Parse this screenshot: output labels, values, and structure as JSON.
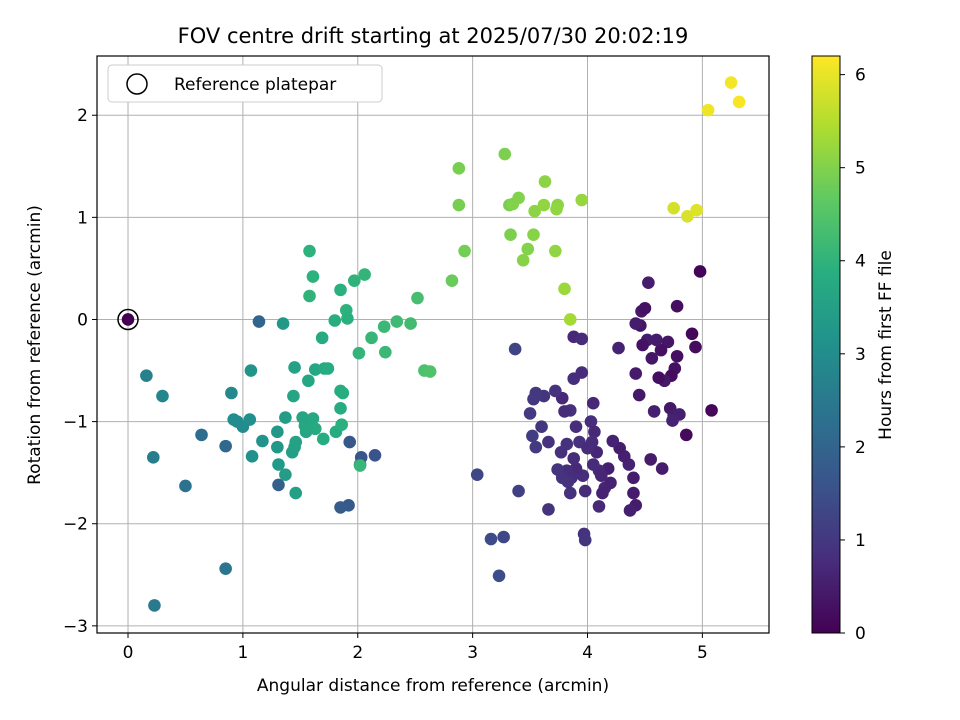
{
  "chart_data": {
    "type": "scatter",
    "title": "FOV centre drift starting at 2025/07/30 20:02:19",
    "xlabel": "Angular distance from reference (arcmin)",
    "ylabel": "Rotation from reference (arcmin)",
    "xlim": [
      -0.27,
      5.58
    ],
    "ylim": [
      -3.07,
      2.58
    ],
    "xticks": [
      0,
      1,
      2,
      3,
      4,
      5
    ],
    "yticks": [
      2,
      1,
      0,
      -1,
      -2,
      -3
    ],
    "grid": true,
    "colormap": "viridis",
    "colorbar": {
      "label": "Hours from first FF file",
      "min": 0,
      "max": 6.2,
      "ticks": [
        0,
        1,
        2,
        3,
        4,
        5,
        6
      ]
    },
    "legend": {
      "position": "top-left",
      "entries": [
        "Reference platepar"
      ]
    },
    "reference_point": {
      "x": 0,
      "y": 0
    },
    "points": [
      {
        "x": 0.0,
        "y": 0.0,
        "t": 0.0
      },
      {
        "x": 4.98,
        "y": 0.47,
        "t": 0.05
      },
      {
        "x": 5.08,
        "y": -0.89,
        "t": 0.1
      },
      {
        "x": 4.86,
        "y": -1.13,
        "t": 0.15
      },
      {
        "x": 4.94,
        "y": -0.27,
        "t": 0.2
      },
      {
        "x": 4.91,
        "y": -0.14,
        "t": 0.1
      },
      {
        "x": 4.78,
        "y": -0.36,
        "t": 0.25
      },
      {
        "x": 4.76,
        "y": -0.48,
        "t": 0.3
      },
      {
        "x": 4.73,
        "y": -0.55,
        "t": 0.2
      },
      {
        "x": 4.7,
        "y": -0.22,
        "t": 0.35
      },
      {
        "x": 4.67,
        "y": -0.6,
        "t": 0.4
      },
      {
        "x": 4.64,
        "y": -0.3,
        "t": 0.3
      },
      {
        "x": 4.62,
        "y": -0.57,
        "t": 0.25
      },
      {
        "x": 4.6,
        "y": -0.2,
        "t": 0.45
      },
      {
        "x": 4.56,
        "y": -0.38,
        "t": 0.35
      },
      {
        "x": 4.52,
        "y": -0.2,
        "t": 0.5
      },
      {
        "x": 4.48,
        "y": -0.25,
        "t": 0.3
      },
      {
        "x": 4.45,
        "y": -0.74,
        "t": 0.4
      },
      {
        "x": 4.42,
        "y": -0.53,
        "t": 0.45
      },
      {
        "x": 4.46,
        "y": -0.06,
        "t": 0.35
      },
      {
        "x": 4.42,
        "y": -0.04,
        "t": 0.5
      },
      {
        "x": 4.47,
        "y": 0.08,
        "t": 0.4
      },
      {
        "x": 4.5,
        "y": 0.11,
        "t": 0.3
      },
      {
        "x": 4.53,
        "y": 0.36,
        "t": 0.5
      },
      {
        "x": 4.78,
        "y": 0.13,
        "t": 0.25
      },
      {
        "x": 4.55,
        "y": -1.37,
        "t": 0.45
      },
      {
        "x": 4.58,
        "y": -0.9,
        "t": 0.55
      },
      {
        "x": 4.65,
        "y": -1.46,
        "t": 0.5
      },
      {
        "x": 4.72,
        "y": -0.87,
        "t": 0.4
      },
      {
        "x": 4.75,
        "y": -0.94,
        "t": 0.5
      },
      {
        "x": 4.8,
        "y": -0.93,
        "t": 0.55
      },
      {
        "x": 4.74,
        "y": -0.99,
        "t": 0.6
      },
      {
        "x": 4.4,
        "y": -1.55,
        "t": 0.5
      },
      {
        "x": 4.4,
        "y": -1.7,
        "t": 0.45
      },
      {
        "x": 4.42,
        "y": -1.82,
        "t": 0.5
      },
      {
        "x": 4.37,
        "y": -1.87,
        "t": 0.55
      },
      {
        "x": 4.36,
        "y": -1.42,
        "t": 0.6
      },
      {
        "x": 4.32,
        "y": -1.34,
        "t": 0.55
      },
      {
        "x": 4.28,
        "y": -1.26,
        "t": 0.5
      },
      {
        "x": 4.22,
        "y": -1.19,
        "t": 0.6
      },
      {
        "x": 4.18,
        "y": -1.46,
        "t": 0.55
      },
      {
        "x": 4.15,
        "y": -1.65,
        "t": 0.65
      },
      {
        "x": 4.13,
        "y": -1.7,
        "t": 0.6
      },
      {
        "x": 4.1,
        "y": -1.48,
        "t": 0.7
      },
      {
        "x": 4.08,
        "y": -1.3,
        "t": 0.65
      },
      {
        "x": 4.1,
        "y": -1.83,
        "t": 0.7
      },
      {
        "x": 4.05,
        "y": -1.42,
        "t": 0.75
      },
      {
        "x": 4.03,
        "y": -1.0,
        "t": 0.8
      },
      {
        "x": 3.98,
        "y": -1.68,
        "t": 0.75
      },
      {
        "x": 3.96,
        "y": -1.53,
        "t": 0.8
      },
      {
        "x": 3.93,
        "y": -1.2,
        "t": 0.85
      },
      {
        "x": 3.9,
        "y": -1.46,
        "t": 0.7
      },
      {
        "x": 3.88,
        "y": -1.36,
        "t": 0.75
      },
      {
        "x": 3.86,
        "y": -1.55,
        "t": 0.8
      },
      {
        "x": 3.85,
        "y": -0.89,
        "t": 0.85
      },
      {
        "x": 3.83,
        "y": -1.59,
        "t": 0.9
      },
      {
        "x": 3.82,
        "y": -1.48,
        "t": 0.8
      },
      {
        "x": 3.8,
        "y": -0.9,
        "t": 0.75
      },
      {
        "x": 3.78,
        "y": -0.77,
        "t": 0.7
      },
      {
        "x": 3.77,
        "y": -1.3,
        "t": 0.85
      },
      {
        "x": 3.74,
        "y": -1.47,
        "t": 0.95
      },
      {
        "x": 3.72,
        "y": -0.7,
        "t": 0.9
      },
      {
        "x": 3.66,
        "y": -1.2,
        "t": 0.85
      },
      {
        "x": 3.66,
        "y": -1.86,
        "t": 0.9
      },
      {
        "x": 3.62,
        "y": -0.75,
        "t": 0.95
      },
      {
        "x": 3.55,
        "y": -0.72,
        "t": 1.0
      },
      {
        "x": 3.55,
        "y": -1.25,
        "t": 1.05
      },
      {
        "x": 3.53,
        "y": -0.78,
        "t": 1.0
      },
      {
        "x": 3.52,
        "y": -1.14,
        "t": 1.1
      },
      {
        "x": 3.5,
        "y": -0.92,
        "t": 1.05
      },
      {
        "x": 3.4,
        "y": -1.68,
        "t": 1.2
      },
      {
        "x": 3.37,
        "y": -0.29,
        "t": 1.25
      },
      {
        "x": 3.04,
        "y": -1.52,
        "t": 1.3
      },
      {
        "x": 3.27,
        "y": -2.13,
        "t": 1.35
      },
      {
        "x": 3.16,
        "y": -2.15,
        "t": 1.4
      },
      {
        "x": 3.23,
        "y": -2.51,
        "t": 1.45
      },
      {
        "x": 3.97,
        "y": -2.1,
        "t": 0.9
      },
      {
        "x": 3.98,
        "y": -2.16,
        "t": 0.95
      },
      {
        "x": 3.88,
        "y": -0.17,
        "t": 0.7
      },
      {
        "x": 3.95,
        "y": -0.19,
        "t": 0.75
      },
      {
        "x": 4.05,
        "y": -0.82,
        "t": 0.7
      },
      {
        "x": 3.95,
        "y": -0.52,
        "t": 0.8
      },
      {
        "x": 4.27,
        "y": -0.28,
        "t": 0.6
      },
      {
        "x": 3.88,
        "y": -0.58,
        "t": 0.8
      },
      {
        "x": 4.0,
        "y": -1.26,
        "t": 0.75
      },
      {
        "x": 4.2,
        "y": -1.6,
        "t": 0.6
      },
      {
        "x": 4.12,
        "y": -1.53,
        "t": 0.65
      },
      {
        "x": 3.82,
        "y": -1.22,
        "t": 0.85
      },
      {
        "x": 4.06,
        "y": -1.1,
        "t": 0.7
      },
      {
        "x": 3.9,
        "y": -1.05,
        "t": 0.8
      },
      {
        "x": 3.85,
        "y": -1.7,
        "t": 0.85
      },
      {
        "x": 3.78,
        "y": -1.55,
        "t": 0.9
      },
      {
        "x": 4.04,
        "y": -1.2,
        "t": 0.75
      },
      {
        "x": 3.6,
        "y": -1.05,
        "t": 0.95
      },
      {
        "x": 2.02,
        "y": -1.42,
        "t": 1.55
      },
      {
        "x": 2.15,
        "y": -1.33,
        "t": 1.6
      },
      {
        "x": 2.03,
        "y": -1.35,
        "t": 1.65
      },
      {
        "x": 1.93,
        "y": -1.2,
        "t": 1.7
      },
      {
        "x": 1.92,
        "y": -1.82,
        "t": 1.75
      },
      {
        "x": 1.85,
        "y": -1.84,
        "t": 1.8
      },
      {
        "x": 1.31,
        "y": -1.62,
        "t": 1.9
      },
      {
        "x": 1.14,
        "y": -0.02,
        "t": 2.0
      },
      {
        "x": 0.85,
        "y": -1.24,
        "t": 2.1
      },
      {
        "x": 0.64,
        "y": -1.13,
        "t": 2.2
      },
      {
        "x": 0.5,
        "y": -1.63,
        "t": 2.3
      },
      {
        "x": 0.85,
        "y": -2.44,
        "t": 2.4
      },
      {
        "x": 0.23,
        "y": -2.8,
        "t": 2.5
      },
      {
        "x": 0.22,
        "y": -1.35,
        "t": 2.6
      },
      {
        "x": 0.16,
        "y": -0.55,
        "t": 2.7
      },
      {
        "x": 0.3,
        "y": -0.75,
        "t": 2.8
      },
      {
        "x": 0.9,
        "y": -0.72,
        "t": 2.9
      },
      {
        "x": 0.95,
        "y": -1.0,
        "t": 2.95
      },
      {
        "x": 1.0,
        "y": -1.05,
        "t": 3.0
      },
      {
        "x": 1.06,
        "y": -0.98,
        "t": 3.05
      },
      {
        "x": 1.08,
        "y": -1.34,
        "t": 3.1
      },
      {
        "x": 1.17,
        "y": -1.19,
        "t": 3.15
      },
      {
        "x": 1.07,
        "y": -0.5,
        "t": 3.2
      },
      {
        "x": 1.3,
        "y": -1.1,
        "t": 3.25
      },
      {
        "x": 1.3,
        "y": -1.25,
        "t": 3.3
      },
      {
        "x": 1.31,
        "y": -1.42,
        "t": 3.35
      },
      {
        "x": 1.37,
        "y": -1.52,
        "t": 3.4
      },
      {
        "x": 1.35,
        "y": -0.04,
        "t": 3.3
      },
      {
        "x": 1.37,
        "y": -0.96,
        "t": 3.4
      },
      {
        "x": 1.43,
        "y": -1.3,
        "t": 3.45
      },
      {
        "x": 1.45,
        "y": -1.25,
        "t": 3.5
      },
      {
        "x": 1.46,
        "y": -1.2,
        "t": 3.55
      },
      {
        "x": 1.46,
        "y": -1.7,
        "t": 3.5
      },
      {
        "x": 1.44,
        "y": -0.75,
        "t": 3.6
      },
      {
        "x": 1.45,
        "y": -0.47,
        "t": 3.55
      },
      {
        "x": 1.52,
        "y": -0.96,
        "t": 3.6
      },
      {
        "x": 1.54,
        "y": -1.04,
        "t": 3.65
      },
      {
        "x": 1.55,
        "y": -1.1,
        "t": 3.6
      },
      {
        "x": 1.57,
        "y": -0.6,
        "t": 3.7
      },
      {
        "x": 1.58,
        "y": -1.06,
        "t": 3.65
      },
      {
        "x": 1.61,
        "y": -0.97,
        "t": 3.7
      },
      {
        "x": 1.63,
        "y": -1.07,
        "t": 3.75
      },
      {
        "x": 1.63,
        "y": -0.49,
        "t": 3.7
      },
      {
        "x": 1.7,
        "y": -1.17,
        "t": 3.8
      },
      {
        "x": 1.71,
        "y": -0.48,
        "t": 3.75
      },
      {
        "x": 1.74,
        "y": -0.48,
        "t": 3.8
      },
      {
        "x": 1.69,
        "y": -0.18,
        "t": 3.75
      },
      {
        "x": 1.81,
        "y": -1.1,
        "t": 3.8
      },
      {
        "x": 1.8,
        "y": -0.01,
        "t": 3.85
      },
      {
        "x": 1.85,
        "y": -0.87,
        "t": 3.8
      },
      {
        "x": 1.85,
        "y": -0.7,
        "t": 3.85
      },
      {
        "x": 1.86,
        "y": -1.03,
        "t": 3.9
      },
      {
        "x": 1.87,
        "y": -0.72,
        "t": 3.85
      },
      {
        "x": 1.85,
        "y": 0.29,
        "t": 3.9
      },
      {
        "x": 1.9,
        "y": 0.09,
        "t": 3.95
      },
      {
        "x": 1.91,
        "y": 0.01,
        "t": 3.9
      },
      {
        "x": 1.58,
        "y": 0.67,
        "t": 3.95
      },
      {
        "x": 1.61,
        "y": 0.42,
        "t": 3.95
      },
      {
        "x": 1.58,
        "y": 0.23,
        "t": 4.0
      },
      {
        "x": 1.97,
        "y": 0.38,
        "t": 4.0
      },
      {
        "x": 2.06,
        "y": 0.44,
        "t": 4.05
      },
      {
        "x": 2.01,
        "y": -0.33,
        "t": 4.05
      },
      {
        "x": 2.12,
        "y": -0.18,
        "t": 4.1
      },
      {
        "x": 2.23,
        "y": -0.07,
        "t": 4.15
      },
      {
        "x": 2.24,
        "y": -0.32,
        "t": 4.15
      },
      {
        "x": 2.34,
        "y": -0.02,
        "t": 4.2
      },
      {
        "x": 2.46,
        "y": -0.04,
        "t": 4.25
      },
      {
        "x": 2.52,
        "y": 0.21,
        "t": 4.3
      },
      {
        "x": 2.58,
        "y": -0.5,
        "t": 4.4
      },
      {
        "x": 2.63,
        "y": -0.51,
        "t": 4.45
      },
      {
        "x": 0.92,
        "y": -0.98,
        "t": 3.0
      },
      {
        "x": 2.02,
        "y": -1.43,
        "t": 4.1
      },
      {
        "x": 2.82,
        "y": 0.38,
        "t": 4.75
      },
      {
        "x": 2.88,
        "y": 1.48,
        "t": 4.9
      },
      {
        "x": 2.88,
        "y": 1.12,
        "t": 4.9
      },
      {
        "x": 2.93,
        "y": 0.67,
        "t": 4.85
      },
      {
        "x": 3.28,
        "y": 1.62,
        "t": 4.95
      },
      {
        "x": 3.32,
        "y": 1.12,
        "t": 4.9
      },
      {
        "x": 3.35,
        "y": 1.13,
        "t": 5.0
      },
      {
        "x": 3.33,
        "y": 0.83,
        "t": 4.95
      },
      {
        "x": 3.4,
        "y": 1.19,
        "t": 5.0
      },
      {
        "x": 3.44,
        "y": 0.58,
        "t": 5.05
      },
      {
        "x": 3.48,
        "y": 0.69,
        "t": 5.0
      },
      {
        "x": 3.53,
        "y": 0.83,
        "t": 5.05
      },
      {
        "x": 3.54,
        "y": 1.06,
        "t": 5.1
      },
      {
        "x": 3.63,
        "y": 1.35,
        "t": 5.1
      },
      {
        "x": 3.62,
        "y": 1.12,
        "t": 5.15
      },
      {
        "x": 3.74,
        "y": 1.12,
        "t": 5.1
      },
      {
        "x": 3.73,
        "y": 1.08,
        "t": 5.15
      },
      {
        "x": 3.72,
        "y": 0.67,
        "t": 5.15
      },
      {
        "x": 3.8,
        "y": 0.3,
        "t": 5.25
      },
      {
        "x": 3.85,
        "y": 0.0,
        "t": 5.35
      },
      {
        "x": 3.95,
        "y": 1.17,
        "t": 5.2
      },
      {
        "x": 4.75,
        "y": 1.09,
        "t": 5.8
      },
      {
        "x": 4.87,
        "y": 1.01,
        "t": 5.85
      },
      {
        "x": 4.95,
        "y": 1.07,
        "t": 5.9
      },
      {
        "x": 5.05,
        "y": 2.05,
        "t": 6.05
      },
      {
        "x": 5.25,
        "y": 2.32,
        "t": 6.1
      },
      {
        "x": 5.32,
        "y": 2.13,
        "t": 6.15
      }
    ]
  }
}
